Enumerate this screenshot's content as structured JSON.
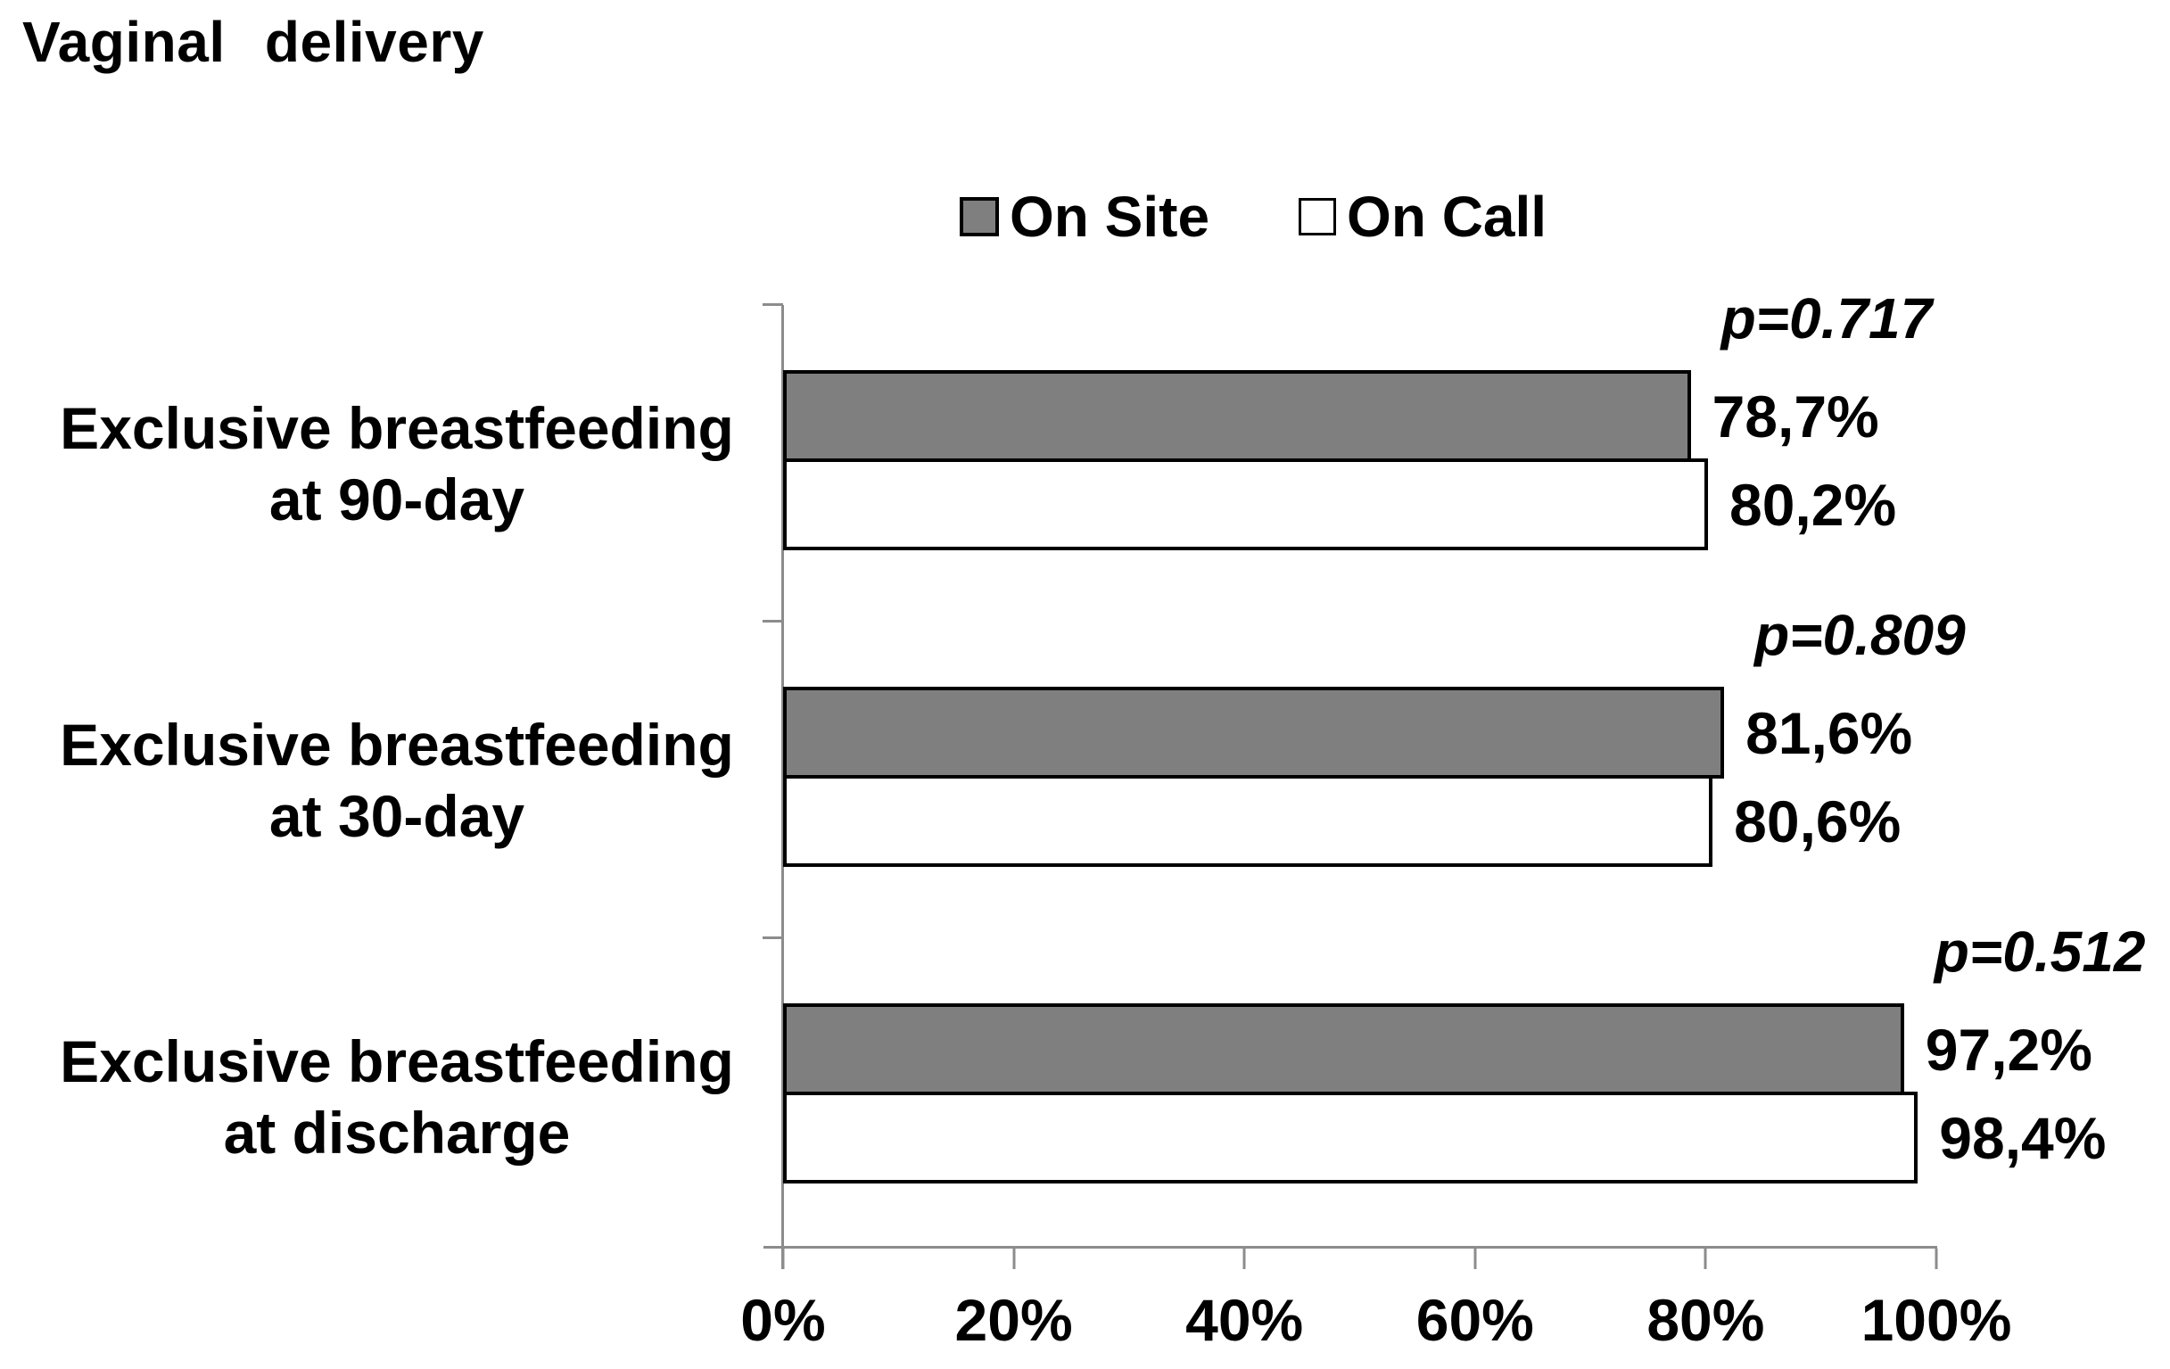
{
  "page": {
    "title": "Vaginal delivery"
  },
  "legend": {
    "items": [
      {
        "label": "On Site",
        "swatch": "filled-gray-square"
      },
      {
        "label": "On Call",
        "swatch": "white-square"
      }
    ]
  },
  "colors": {
    "on_site_fill": "#7f7f7f",
    "on_call_fill": "#ffffff",
    "bar_border": "#000000",
    "axis_line": "#8c8c8c",
    "text": "#000000",
    "background": "#ffffff"
  },
  "chart_data": {
    "type": "bar",
    "orientation": "horizontal",
    "title": "Vaginal delivery",
    "categories": [
      "Exclusive breastfeeding at 90-day",
      "Exclusive breastfeeding at 30-day",
      "Exclusive breastfeeding at discharge"
    ],
    "series": [
      {
        "name": "On Site",
        "values": [
          78.7,
          81.6,
          97.2
        ]
      },
      {
        "name": "On Call",
        "values": [
          80.2,
          80.6,
          98.4
        ]
      }
    ],
    "xlim": [
      0,
      100
    ],
    "x_tick_labels": [
      "0%",
      "20%",
      "40%",
      "60%",
      "80%",
      "100%"
    ],
    "grid": false,
    "legend_position": "top-center",
    "groups": [
      {
        "label_line1": "Exclusive breastfeeding",
        "label_line2": "at 90-day",
        "on_site": 78.7,
        "on_call": 80.2,
        "on_site_label": "78,7%",
        "on_call_label": "80,2%",
        "p_label": "p=0.717"
      },
      {
        "label_line1": "Exclusive breastfeeding",
        "label_line2": "at 30-day",
        "on_site": 81.6,
        "on_call": 80.6,
        "on_site_label": "81,6%",
        "on_call_label": "80,6%",
        "p_label": "p=0.809"
      },
      {
        "label_line1": "Exclusive breastfeeding",
        "label_line2": "at discharge",
        "on_site": 97.2,
        "on_call": 98.4,
        "on_site_label": "97,2%",
        "on_call_label": "98,4%",
        "p_label": "p=0.512"
      }
    ]
  }
}
